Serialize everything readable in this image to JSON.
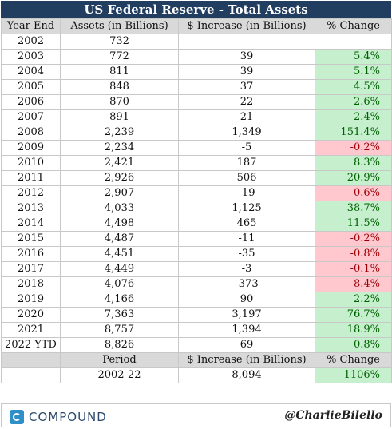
{
  "chart_data": {
    "type": "table",
    "title": "US Federal Reserve - Total Assets",
    "columns": [
      "Year End",
      "Assets (in Billions)",
      "$ Increase (in Billions)",
      "% Change"
    ],
    "rows": [
      {
        "year": "2002",
        "assets": "732",
        "increase": "",
        "change": "",
        "sign": "none"
      },
      {
        "year": "2003",
        "assets": "772",
        "increase": "39",
        "change": "5.4%",
        "sign": "pos"
      },
      {
        "year": "2004",
        "assets": "811",
        "increase": "39",
        "change": "5.1%",
        "sign": "pos"
      },
      {
        "year": "2005",
        "assets": "848",
        "increase": "37",
        "change": "4.5%",
        "sign": "pos"
      },
      {
        "year": "2006",
        "assets": "870",
        "increase": "22",
        "change": "2.6%",
        "sign": "pos"
      },
      {
        "year": "2007",
        "assets": "891",
        "increase": "21",
        "change": "2.4%",
        "sign": "pos"
      },
      {
        "year": "2008",
        "assets": "2,239",
        "increase": "1,349",
        "change": "151.4%",
        "sign": "pos"
      },
      {
        "year": "2009",
        "assets": "2,234",
        "increase": "-5",
        "change": "-0.2%",
        "sign": "neg"
      },
      {
        "year": "2010",
        "assets": "2,421",
        "increase": "187",
        "change": "8.3%",
        "sign": "pos"
      },
      {
        "year": "2011",
        "assets": "2,926",
        "increase": "506",
        "change": "20.9%",
        "sign": "pos"
      },
      {
        "year": "2012",
        "assets": "2,907",
        "increase": "-19",
        "change": "-0.6%",
        "sign": "neg"
      },
      {
        "year": "2013",
        "assets": "4,033",
        "increase": "1,125",
        "change": "38.7%",
        "sign": "pos"
      },
      {
        "year": "2014",
        "assets": "4,498",
        "increase": "465",
        "change": "11.5%",
        "sign": "pos"
      },
      {
        "year": "2015",
        "assets": "4,487",
        "increase": "-11",
        "change": "-0.2%",
        "sign": "neg"
      },
      {
        "year": "2016",
        "assets": "4,451",
        "increase": "-35",
        "change": "-0.8%",
        "sign": "neg"
      },
      {
        "year": "2017",
        "assets": "4,449",
        "increase": "-3",
        "change": "-0.1%",
        "sign": "neg"
      },
      {
        "year": "2018",
        "assets": "4,076",
        "increase": "-373",
        "change": "-8.4%",
        "sign": "neg"
      },
      {
        "year": "2019",
        "assets": "4,166",
        "increase": "90",
        "change": "2.2%",
        "sign": "pos"
      },
      {
        "year": "2020",
        "assets": "7,363",
        "increase": "3,197",
        "change": "76.7%",
        "sign": "pos"
      },
      {
        "year": "2021",
        "assets": "8,757",
        "increase": "1,394",
        "change": "18.9%",
        "sign": "pos"
      },
      {
        "year": "2022 YTD",
        "assets": "8,826",
        "increase": "69",
        "change": "0.8%",
        "sign": "pos"
      }
    ],
    "summary": {
      "columns": [
        "Period",
        "$ Increase (in Billions)",
        "% Change"
      ],
      "period": "2002-22",
      "increase": "8,094",
      "change": "1106%",
      "sign": "pos"
    },
    "colors": {
      "header_bg": "#213d60",
      "positive_bg": "#c6efce",
      "positive_text": "#006100",
      "negative_bg": "#ffc7ce",
      "negative_text": "#9c0006",
      "column_header_bg": "#d9d9d9"
    }
  },
  "footer": {
    "logo_icon": "compound-logo-icon",
    "logo_text": "COMPOUND",
    "handle": "@CharlieBilello"
  }
}
